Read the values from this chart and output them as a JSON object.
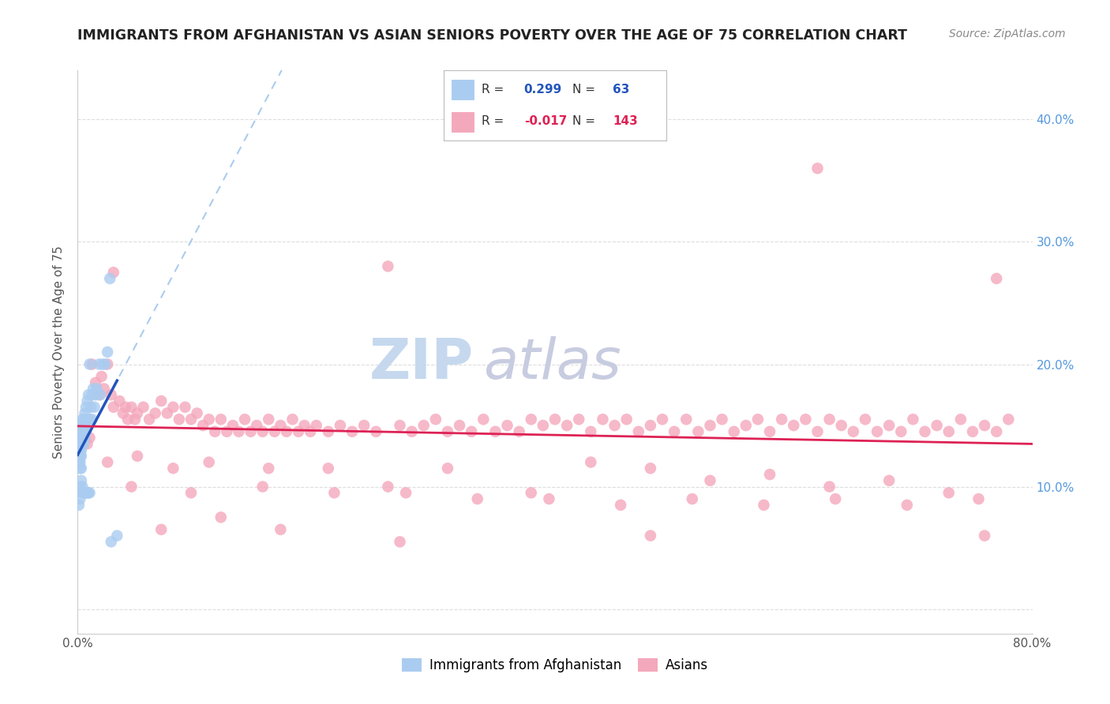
{
  "title": "IMMIGRANTS FROM AFGHANISTAN VS ASIAN SENIORS POVERTY OVER THE AGE OF 75 CORRELATION CHART",
  "source": "Source: ZipAtlas.com",
  "ylabel": "Seniors Poverty Over the Age of 75",
  "xlim": [
    0.0,
    0.8
  ],
  "ylim": [
    -0.02,
    0.44
  ],
  "background_color": "#ffffff",
  "grid_color": "#dddddd",
  "blue_color": "#aaccf0",
  "pink_color": "#f4a8bc",
  "blue_line_color": "#2255bb",
  "pink_line_color": "#dd2255",
  "dashed_line_color": "#aaccee",
  "blue_R": 0.299,
  "blue_N": 63,
  "pink_R": -0.017,
  "pink_N": 143,
  "blue_x": [
    0.001,
    0.001,
    0.001,
    0.001,
    0.002,
    0.002,
    0.002,
    0.002,
    0.002,
    0.002,
    0.002,
    0.002,
    0.002,
    0.003,
    0.003,
    0.003,
    0.003,
    0.003,
    0.003,
    0.003,
    0.003,
    0.004,
    0.004,
    0.004,
    0.004,
    0.004,
    0.004,
    0.005,
    0.005,
    0.005,
    0.005,
    0.005,
    0.006,
    0.006,
    0.006,
    0.006,
    0.007,
    0.007,
    0.007,
    0.007,
    0.008,
    0.008,
    0.008,
    0.009,
    0.009,
    0.01,
    0.01,
    0.01,
    0.011,
    0.012,
    0.012,
    0.013,
    0.014,
    0.015,
    0.016,
    0.018,
    0.019,
    0.021,
    0.023,
    0.025,
    0.027,
    0.028,
    0.033
  ],
  "blue_y": [
    0.13,
    0.125,
    0.12,
    0.085,
    0.145,
    0.14,
    0.135,
    0.13,
    0.125,
    0.12,
    0.115,
    0.1,
    0.09,
    0.15,
    0.145,
    0.14,
    0.135,
    0.13,
    0.125,
    0.115,
    0.105,
    0.155,
    0.15,
    0.14,
    0.135,
    0.1,
    0.095,
    0.155,
    0.15,
    0.145,
    0.135,
    0.095,
    0.16,
    0.15,
    0.14,
    0.095,
    0.165,
    0.155,
    0.145,
    0.095,
    0.17,
    0.155,
    0.095,
    0.175,
    0.095,
    0.2,
    0.155,
    0.095,
    0.165,
    0.175,
    0.155,
    0.18,
    0.165,
    0.175,
    0.18,
    0.2,
    0.175,
    0.2,
    0.2,
    0.21,
    0.27,
    0.055,
    0.06
  ],
  "pink_x": [
    0.008,
    0.01,
    0.012,
    0.015,
    0.018,
    0.02,
    0.022,
    0.025,
    0.028,
    0.03,
    0.035,
    0.038,
    0.04,
    0.042,
    0.045,
    0.048,
    0.05,
    0.055,
    0.06,
    0.065,
    0.07,
    0.075,
    0.08,
    0.085,
    0.09,
    0.095,
    0.1,
    0.105,
    0.11,
    0.115,
    0.12,
    0.125,
    0.13,
    0.135,
    0.14,
    0.145,
    0.15,
    0.155,
    0.16,
    0.165,
    0.17,
    0.175,
    0.18,
    0.185,
    0.19,
    0.195,
    0.2,
    0.21,
    0.22,
    0.23,
    0.24,
    0.25,
    0.26,
    0.27,
    0.28,
    0.29,
    0.3,
    0.31,
    0.32,
    0.33,
    0.34,
    0.35,
    0.36,
    0.37,
    0.38,
    0.39,
    0.4,
    0.41,
    0.42,
    0.43,
    0.44,
    0.45,
    0.46,
    0.47,
    0.48,
    0.49,
    0.5,
    0.51,
    0.52,
    0.53,
    0.54,
    0.55,
    0.56,
    0.57,
    0.58,
    0.59,
    0.6,
    0.61,
    0.62,
    0.63,
    0.64,
    0.65,
    0.66,
    0.67,
    0.68,
    0.69,
    0.7,
    0.71,
    0.72,
    0.73,
    0.74,
    0.75,
    0.76,
    0.77,
    0.78,
    0.025,
    0.05,
    0.08,
    0.11,
    0.16,
    0.21,
    0.26,
    0.31,
    0.38,
    0.43,
    0.48,
    0.53,
    0.58,
    0.63,
    0.68,
    0.73,
    0.045,
    0.095,
    0.155,
    0.215,
    0.275,
    0.335,
    0.395,
    0.455,
    0.515,
    0.575,
    0.635,
    0.695,
    0.755,
    0.03,
    0.07,
    0.12,
    0.17,
    0.27,
    0.48,
    0.76,
    0.62,
    0.77
  ],
  "pink_y": [
    0.135,
    0.14,
    0.2,
    0.185,
    0.175,
    0.19,
    0.18,
    0.2,
    0.175,
    0.165,
    0.17,
    0.16,
    0.165,
    0.155,
    0.165,
    0.155,
    0.16,
    0.165,
    0.155,
    0.16,
    0.17,
    0.16,
    0.165,
    0.155,
    0.165,
    0.155,
    0.16,
    0.15,
    0.155,
    0.145,
    0.155,
    0.145,
    0.15,
    0.145,
    0.155,
    0.145,
    0.15,
    0.145,
    0.155,
    0.145,
    0.15,
    0.145,
    0.155,
    0.145,
    0.15,
    0.145,
    0.15,
    0.145,
    0.15,
    0.145,
    0.15,
    0.145,
    0.28,
    0.15,
    0.145,
    0.15,
    0.155,
    0.145,
    0.15,
    0.145,
    0.155,
    0.145,
    0.15,
    0.145,
    0.155,
    0.15,
    0.155,
    0.15,
    0.155,
    0.145,
    0.155,
    0.15,
    0.155,
    0.145,
    0.15,
    0.155,
    0.145,
    0.155,
    0.145,
    0.15,
    0.155,
    0.145,
    0.15,
    0.155,
    0.145,
    0.155,
    0.15,
    0.155,
    0.145,
    0.155,
    0.15,
    0.145,
    0.155,
    0.145,
    0.15,
    0.145,
    0.155,
    0.145,
    0.15,
    0.145,
    0.155,
    0.145,
    0.15,
    0.145,
    0.155,
    0.12,
    0.125,
    0.115,
    0.12,
    0.115,
    0.115,
    0.1,
    0.115,
    0.095,
    0.12,
    0.115,
    0.105,
    0.11,
    0.1,
    0.105,
    0.095,
    0.1,
    0.095,
    0.1,
    0.095,
    0.095,
    0.09,
    0.09,
    0.085,
    0.09,
    0.085,
    0.09,
    0.085,
    0.09,
    0.275,
    0.065,
    0.075,
    0.065,
    0.055,
    0.06,
    0.06,
    0.36,
    0.27
  ]
}
